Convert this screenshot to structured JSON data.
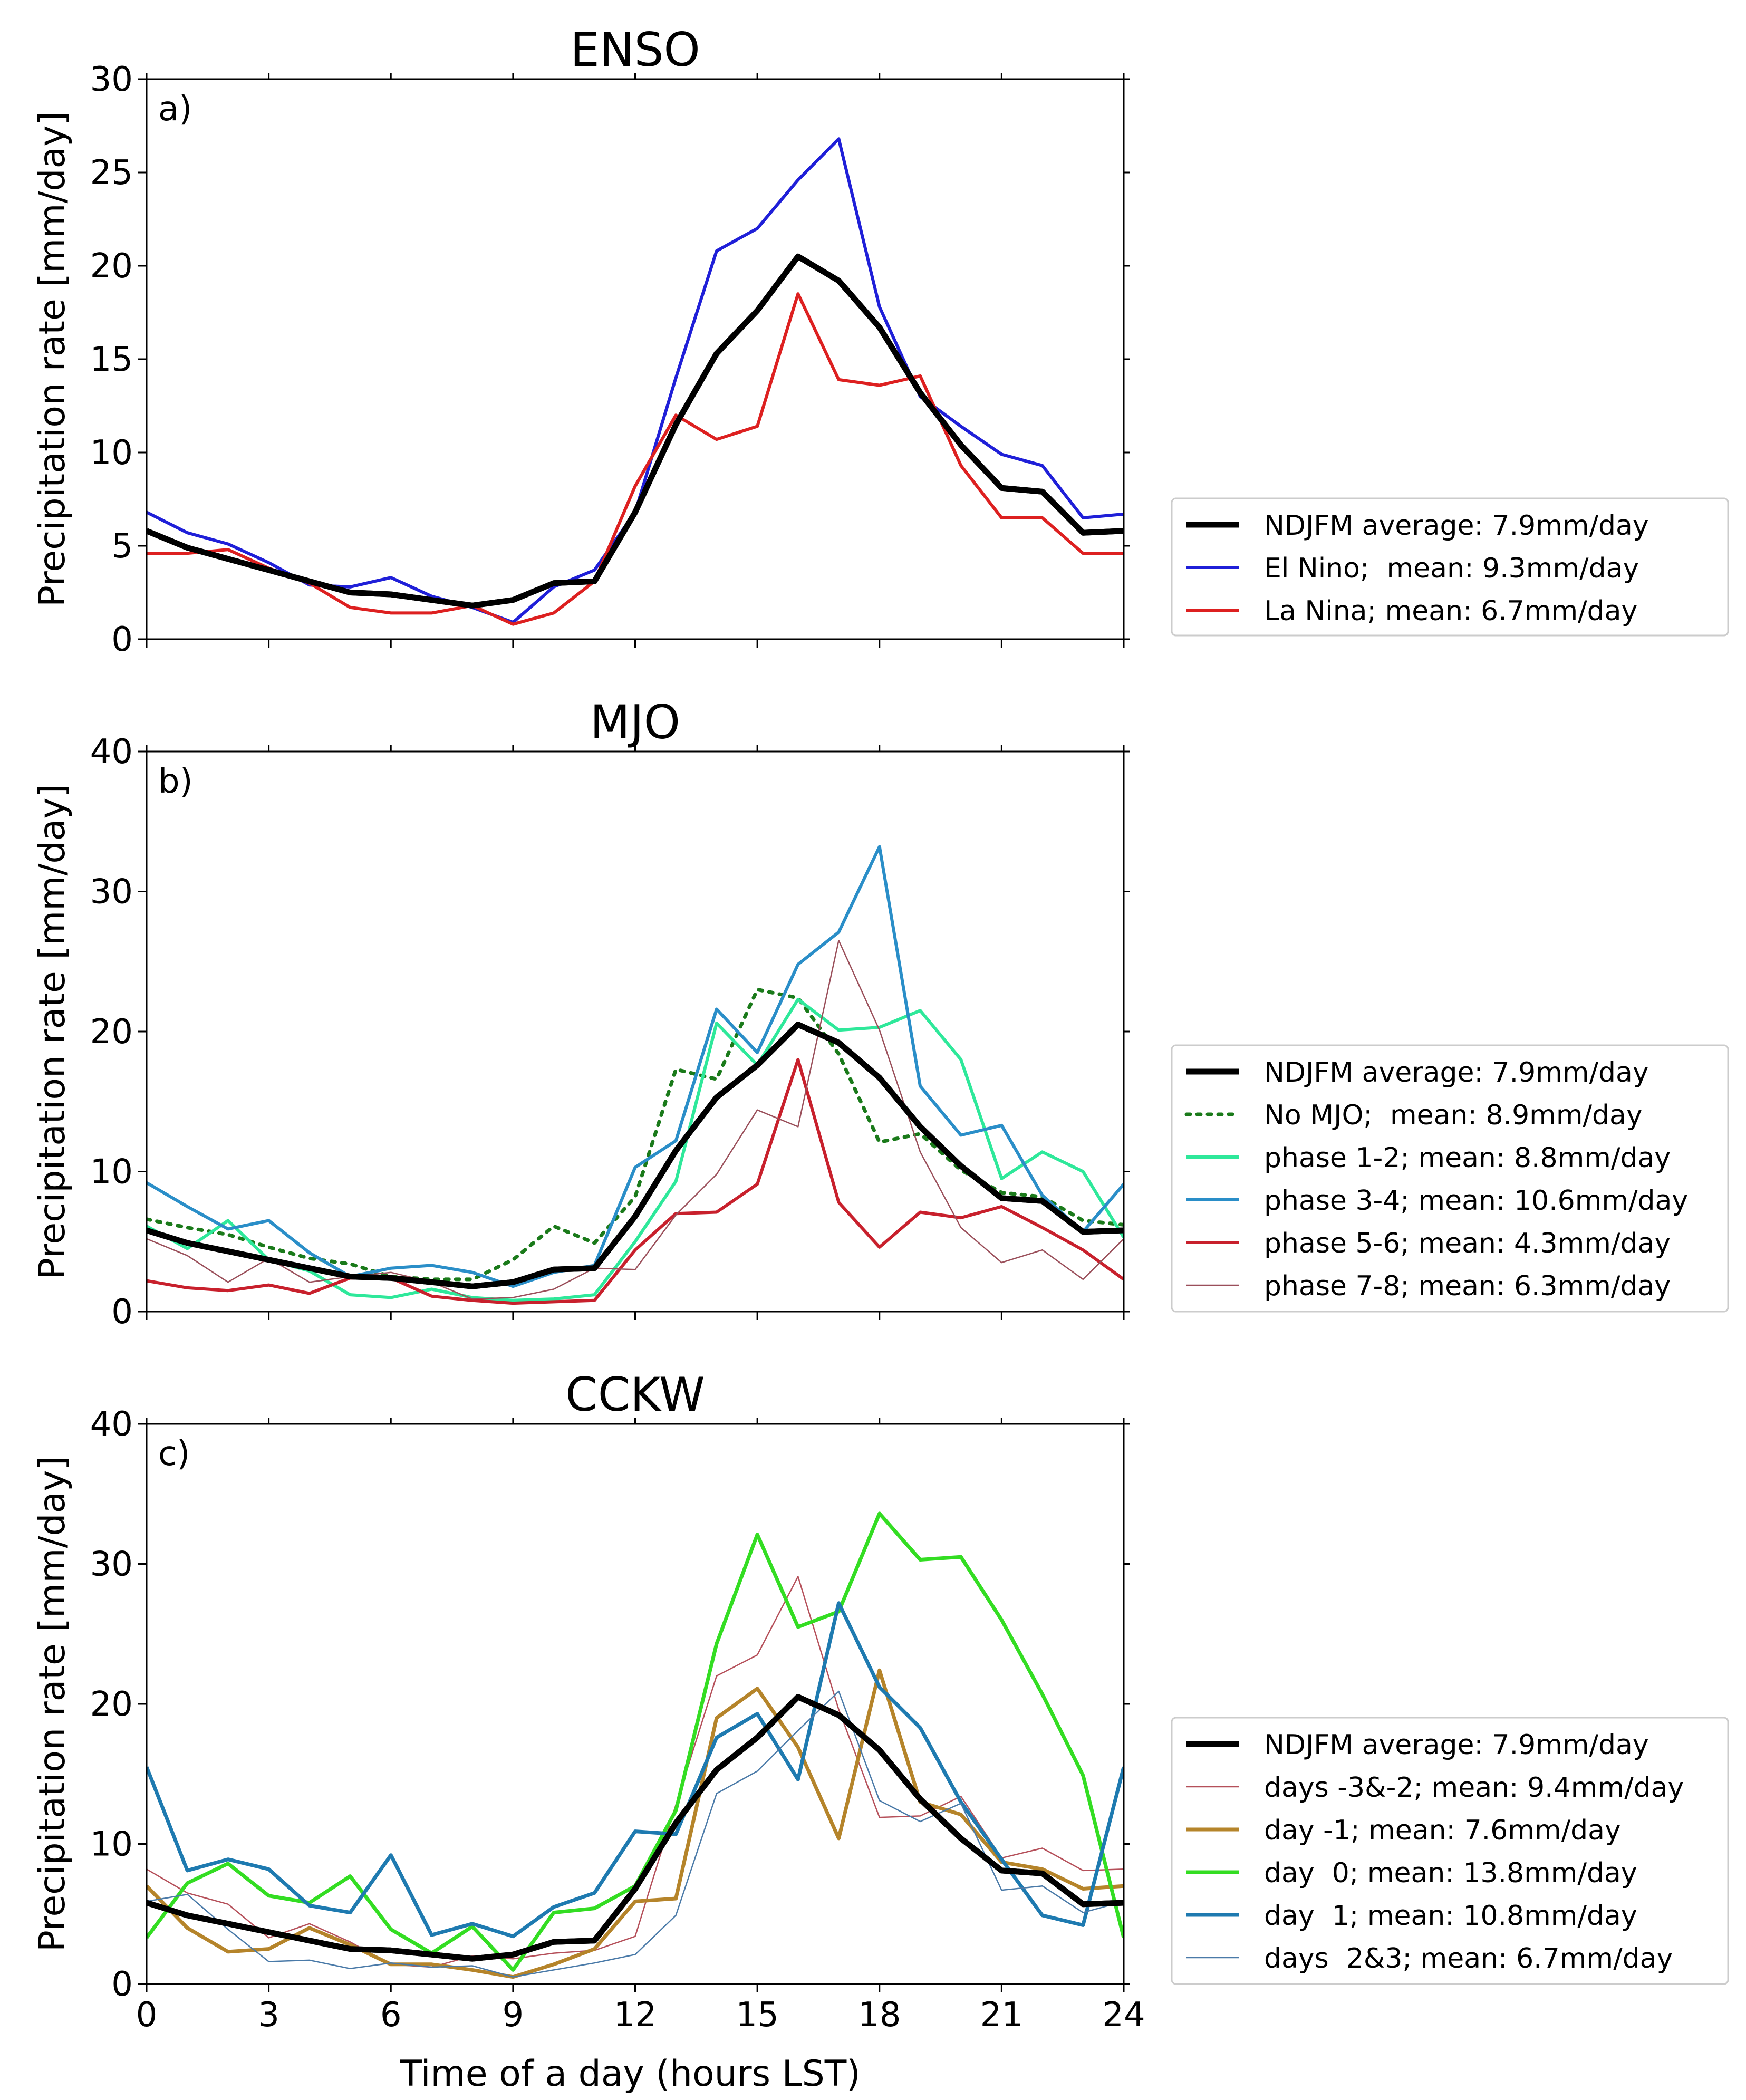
{
  "figure": {
    "xlabel": "Time of a day (hours LST)",
    "ylabel": "Precipitation rate [mm/day]",
    "xticks": [
      0,
      3,
      6,
      9,
      12,
      15,
      18,
      21,
      24
    ],
    "xlim": [
      0,
      24
    ]
  },
  "chart_data": [
    {
      "type": "line",
      "title": "ENSO",
      "panel_label": "a)",
      "ylabel": "Precipitation rate [mm/day]",
      "xlabel": "",
      "xlim": [
        0,
        24
      ],
      "ylim": [
        0,
        30
      ],
      "yticks": [
        0,
        5,
        10,
        15,
        20,
        25,
        30
      ],
      "show_xtick_labels": false,
      "grid": false,
      "legend_position": "right",
      "x": [
        0,
        1,
        2,
        3,
        4,
        5,
        6,
        7,
        8,
        9,
        10,
        11,
        12,
        13,
        14,
        15,
        16,
        17,
        18,
        19,
        20,
        21,
        22,
        23,
        24
      ],
      "series": [
        {
          "name": "NDJFM average: 7.9mm/day",
          "color": "#000000",
          "width": 11,
          "dash": "",
          "values": [
            5.8,
            4.9,
            4.3,
            3.7,
            3.1,
            2.5,
            2.4,
            2.1,
            1.8,
            2.1,
            3.0,
            3.1,
            6.8,
            11.5,
            15.3,
            17.6,
            20.5,
            19.2,
            16.7,
            13.2,
            10.4,
            8.1,
            7.9,
            5.7,
            5.8
          ]
        },
        {
          "name": "El Nino;  mean: 9.3mm/day",
          "color": "#1f1fd8",
          "width": 6,
          "dash": "",
          "values": [
            6.8,
            5.7,
            5.1,
            4.1,
            2.9,
            2.8,
            3.3,
            2.3,
            1.7,
            0.9,
            2.8,
            3.7,
            6.8,
            14.0,
            20.8,
            22.0,
            24.6,
            26.8,
            17.8,
            13.0,
            11.4,
            9.9,
            9.3,
            6.5,
            6.7
          ]
        },
        {
          "name": "La Nina; mean: 6.7mm/day",
          "color": "#dd2020",
          "width": 6,
          "dash": "",
          "values": [
            4.6,
            4.6,
            4.8,
            3.8,
            3.0,
            1.7,
            1.4,
            1.4,
            1.8,
            0.8,
            1.4,
            3.1,
            8.2,
            12.0,
            10.7,
            11.4,
            18.5,
            13.9,
            13.6,
            14.1,
            9.3,
            6.5,
            6.5,
            4.6,
            4.6
          ]
        }
      ]
    },
    {
      "type": "line",
      "title": "MJO",
      "panel_label": "b)",
      "ylabel": "Precipitation rate [mm/day]",
      "xlabel": "",
      "xlim": [
        0,
        24
      ],
      "ylim": [
        0,
        40
      ],
      "yticks": [
        0,
        10,
        20,
        30,
        40
      ],
      "show_xtick_labels": false,
      "grid": false,
      "legend_position": "right",
      "x": [
        0,
        1,
        2,
        3,
        4,
        5,
        6,
        7,
        8,
        9,
        10,
        11,
        12,
        13,
        14,
        15,
        16,
        17,
        18,
        19,
        20,
        21,
        22,
        23,
        24
      ],
      "series": [
        {
          "name": "NDJFM average: 7.9mm/day",
          "color": "#000000",
          "width": 11,
          "dash": "",
          "values": [
            5.8,
            4.9,
            4.3,
            3.7,
            3.1,
            2.5,
            2.4,
            2.1,
            1.8,
            2.1,
            3.0,
            3.1,
            6.8,
            11.5,
            15.3,
            17.6,
            20.5,
            19.2,
            16.7,
            13.2,
            10.4,
            8.1,
            7.9,
            5.7,
            5.8
          ]
        },
        {
          "name": "No MJO;  mean: 8.9mm/day",
          "color": "#1a7a1a",
          "width": 7,
          "dash": "7 13",
          "values": [
            6.6,
            6.0,
            5.5,
            4.6,
            3.8,
            3.4,
            2.5,
            2.3,
            2.3,
            3.7,
            6.1,
            4.9,
            8.2,
            17.3,
            16.6,
            23.0,
            22.4,
            18.4,
            12.1,
            12.7,
            10.1,
            8.5,
            8.2,
            6.5,
            6.2
          ]
        },
        {
          "name": "phase 1-2; mean: 8.8mm/day",
          "color": "#2ee89a",
          "width": 6,
          "dash": "",
          "values": [
            6.1,
            4.5,
            6.5,
            3.7,
            2.9,
            1.2,
            1.0,
            1.6,
            1.0,
            0.8,
            0.9,
            1.2,
            5.0,
            9.3,
            20.6,
            17.6,
            22.3,
            20.1,
            20.3,
            21.5,
            18.0,
            9.5,
            11.4,
            10.0,
            5.3
          ]
        },
        {
          "name": "phase 3-4; mean: 10.6mm/day",
          "color": "#2a8ec8",
          "width": 6,
          "dash": "",
          "values": [
            9.2,
            7.5,
            5.9,
            6.5,
            4.2,
            2.5,
            3.1,
            3.3,
            2.8,
            1.8,
            2.8,
            3.3,
            10.3,
            12.2,
            21.6,
            18.5,
            24.8,
            27.1,
            33.2,
            16.1,
            12.6,
            13.3,
            8.3,
            5.7,
            9.1
          ]
        },
        {
          "name": "phase 5-6; mean: 4.3mm/day",
          "color": "#c8202c",
          "width": 6,
          "dash": "",
          "values": [
            2.2,
            1.7,
            1.5,
            1.9,
            1.3,
            2.4,
            2.4,
            1.1,
            0.8,
            0.6,
            0.7,
            0.8,
            4.4,
            7.0,
            7.1,
            9.1,
            18.0,
            7.8,
            4.6,
            7.1,
            6.7,
            7.5,
            6.0,
            4.4,
            2.3
          ]
        },
        {
          "name": "phase 7-8; mean: 6.3mm/day",
          "color": "#9a4f5a",
          "width": 2.5,
          "dash": "",
          "values": [
            5.2,
            4.0,
            2.1,
            3.8,
            2.1,
            2.5,
            2.8,
            2.1,
            0.9,
            1.0,
            1.6,
            3.1,
            3.0,
            6.9,
            9.8,
            14.4,
            13.2,
            26.5,
            20.1,
            11.4,
            6.0,
            3.5,
            4.4,
            2.3,
            5.2
          ]
        }
      ]
    },
    {
      "type": "line",
      "title": "CCKW",
      "panel_label": "c)",
      "ylabel": "Precipitation rate [mm/day]",
      "xlabel": "Time of a day (hours LST)",
      "xlim": [
        0,
        24
      ],
      "ylim": [
        0,
        40
      ],
      "yticks": [
        0,
        10,
        20,
        30,
        40
      ],
      "show_xtick_labels": true,
      "grid": false,
      "legend_position": "right",
      "x": [
        0,
        1,
        2,
        3,
        4,
        5,
        6,
        7,
        8,
        9,
        10,
        11,
        12,
        13,
        14,
        15,
        16,
        17,
        18,
        19,
        20,
        21,
        22,
        23,
        24
      ],
      "series": [
        {
          "name": "NDJFM average: 7.9mm/day",
          "color": "#000000",
          "width": 11,
          "dash": "",
          "values": [
            5.8,
            4.9,
            4.3,
            3.7,
            3.1,
            2.5,
            2.4,
            2.1,
            1.8,
            2.1,
            3.0,
            3.1,
            6.8,
            11.5,
            15.3,
            17.6,
            20.5,
            19.2,
            16.7,
            13.2,
            10.4,
            8.1,
            7.9,
            5.7,
            5.8
          ]
        },
        {
          "name": "days -3&-2; mean: 9.4mm/day",
          "color": "#b5505a",
          "width": 2.5,
          "dash": "",
          "values": [
            8.2,
            6.5,
            5.7,
            3.3,
            4.3,
            3.0,
            1.4,
            1.2,
            2.0,
            1.8,
            2.2,
            2.4,
            3.4,
            12.8,
            22.0,
            23.5,
            29.1,
            19.6,
            11.9,
            12.0,
            13.4,
            9.0,
            9.7,
            8.1,
            8.2
          ]
        },
        {
          "name": "day -1; mean: 7.6mm/day",
          "color": "#b5842a",
          "width": 7,
          "dash": "",
          "values": [
            7.0,
            4.0,
            2.3,
            2.5,
            4.0,
            2.8,
            1.4,
            1.4,
            1.0,
            0.5,
            1.4,
            2.5,
            5.9,
            6.1,
            19.0,
            21.1,
            16.9,
            10.4,
            22.4,
            13.0,
            12.1,
            8.7,
            8.2,
            6.8,
            7.0
          ]
        },
        {
          "name": "day  0; mean: 13.8mm/day",
          "color": "#33dd22",
          "width": 7,
          "dash": "",
          "values": [
            3.3,
            7.2,
            8.6,
            6.3,
            5.8,
            7.7,
            3.9,
            2.2,
            4.1,
            1.0,
            5.1,
            5.4,
            7.0,
            12.4,
            24.3,
            32.1,
            25.5,
            26.6,
            33.6,
            30.3,
            30.5,
            26.0,
            20.7,
            14.9,
            3.3
          ]
        },
        {
          "name": "day  1; mean: 10.8mm/day",
          "color": "#1e7ab0",
          "width": 7,
          "dash": "",
          "values": [
            15.5,
            8.1,
            8.9,
            8.2,
            5.6,
            5.1,
            9.2,
            3.5,
            4.3,
            3.4,
            5.5,
            6.5,
            10.9,
            10.7,
            17.6,
            19.3,
            14.6,
            27.2,
            21.2,
            18.3,
            13.0,
            8.9,
            4.9,
            4.2,
            15.5
          ]
        },
        {
          "name": "days  2&3; mean: 6.7mm/day",
          "color": "#4a7aa8",
          "width": 2.5,
          "dash": "",
          "values": [
            5.9,
            6.4,
            3.9,
            1.6,
            1.7,
            1.1,
            1.5,
            1.2,
            1.3,
            0.5,
            1.0,
            1.5,
            2.1,
            4.9,
            13.6,
            15.2,
            18.1,
            20.9,
            13.1,
            11.6,
            12.9,
            6.7,
            7.0,
            5.1,
            5.9
          ]
        }
      ]
    }
  ]
}
